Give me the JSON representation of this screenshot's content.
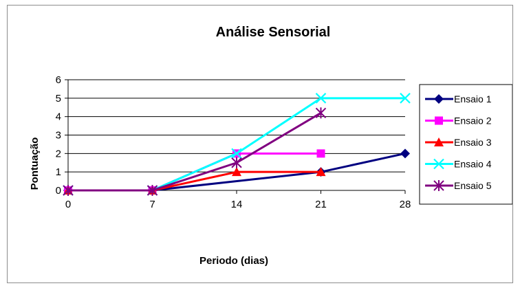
{
  "chart_data": {
    "type": "line",
    "title": "Análise Sensorial",
    "xlabel": "Periodo (dias)",
    "ylabel": "Pontuação",
    "x": [
      0,
      7,
      14,
      21,
      28
    ],
    "xticks": [
      "0",
      "7",
      "14",
      "21",
      "28"
    ],
    "yticks": [
      "0",
      "1",
      "2",
      "3",
      "4",
      "5",
      "6"
    ],
    "ylim": [
      0,
      6
    ],
    "grid": "horizontal",
    "legend_position": "right",
    "series": [
      {
        "name": "Ensaio 1",
        "color": "#000080",
        "marker": "diamond",
        "points": [
          [
            0,
            0
          ],
          [
            7,
            0
          ],
          [
            21,
            1
          ],
          [
            28,
            2
          ]
        ]
      },
      {
        "name": "Ensaio 2",
        "color": "#ff00ff",
        "marker": "square",
        "points": [
          [
            0,
            0
          ],
          [
            7,
            0
          ],
          [
            14,
            2
          ],
          [
            21,
            2
          ]
        ]
      },
      {
        "name": "Ensaio 3",
        "color": "#ff0000",
        "marker": "triangle",
        "points": [
          [
            0,
            0
          ],
          [
            7,
            0
          ],
          [
            14,
            1
          ],
          [
            21,
            1
          ]
        ]
      },
      {
        "name": "Ensaio 4",
        "color": "#00ffff",
        "marker": "x",
        "points": [
          [
            0,
            0
          ],
          [
            7,
            0
          ],
          [
            14,
            2
          ],
          [
            21,
            5
          ],
          [
            28,
            5
          ]
        ]
      },
      {
        "name": "Ensaio 5",
        "color": "#800080",
        "marker": "asterisk",
        "points": [
          [
            0,
            0
          ],
          [
            7,
            0
          ],
          [
            14,
            1.5
          ],
          [
            21,
            4.2
          ]
        ]
      }
    ]
  }
}
